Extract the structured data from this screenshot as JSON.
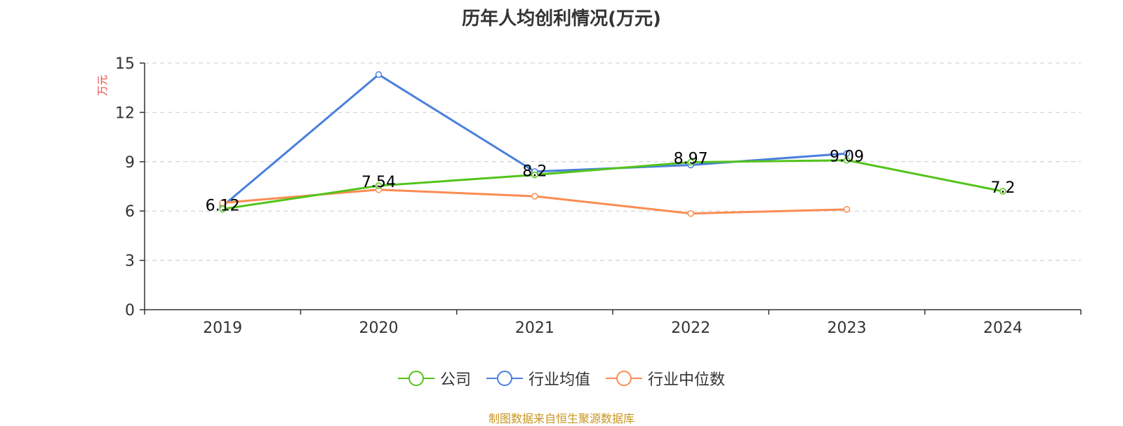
{
  "chart_data": {
    "type": "line",
    "title": "历年人均创利情况(万元)",
    "ylabel": "万元",
    "categories": [
      "2019",
      "2020",
      "2021",
      "2022",
      "2023",
      "2024"
    ],
    "ylim": [
      0,
      15
    ],
    "yticks": [
      "0",
      "3",
      "6",
      "9",
      "12",
      "15"
    ],
    "grid": "horizontal-dashed",
    "legend_placement": "bottom-center",
    "series": [
      {
        "name": "公司",
        "color": "#52c41a",
        "values": [
          6.12,
          7.54,
          8.2,
          8.97,
          9.09,
          7.2
        ],
        "labels": [
          "6.12",
          "7.54",
          "8.2",
          "8.97",
          "9.09",
          "7.2"
        ]
      },
      {
        "name": "行业均值",
        "color": "#4a7fde",
        "values": [
          6.3,
          14.3,
          8.4,
          8.8,
          9.5,
          null
        ]
      },
      {
        "name": "行业中位数",
        "color": "#fa8c52",
        "values": [
          6.5,
          7.3,
          6.9,
          5.85,
          6.1,
          null
        ]
      }
    ]
  },
  "footer": {
    "source": "制图数据来自恒生聚源数据库"
  }
}
